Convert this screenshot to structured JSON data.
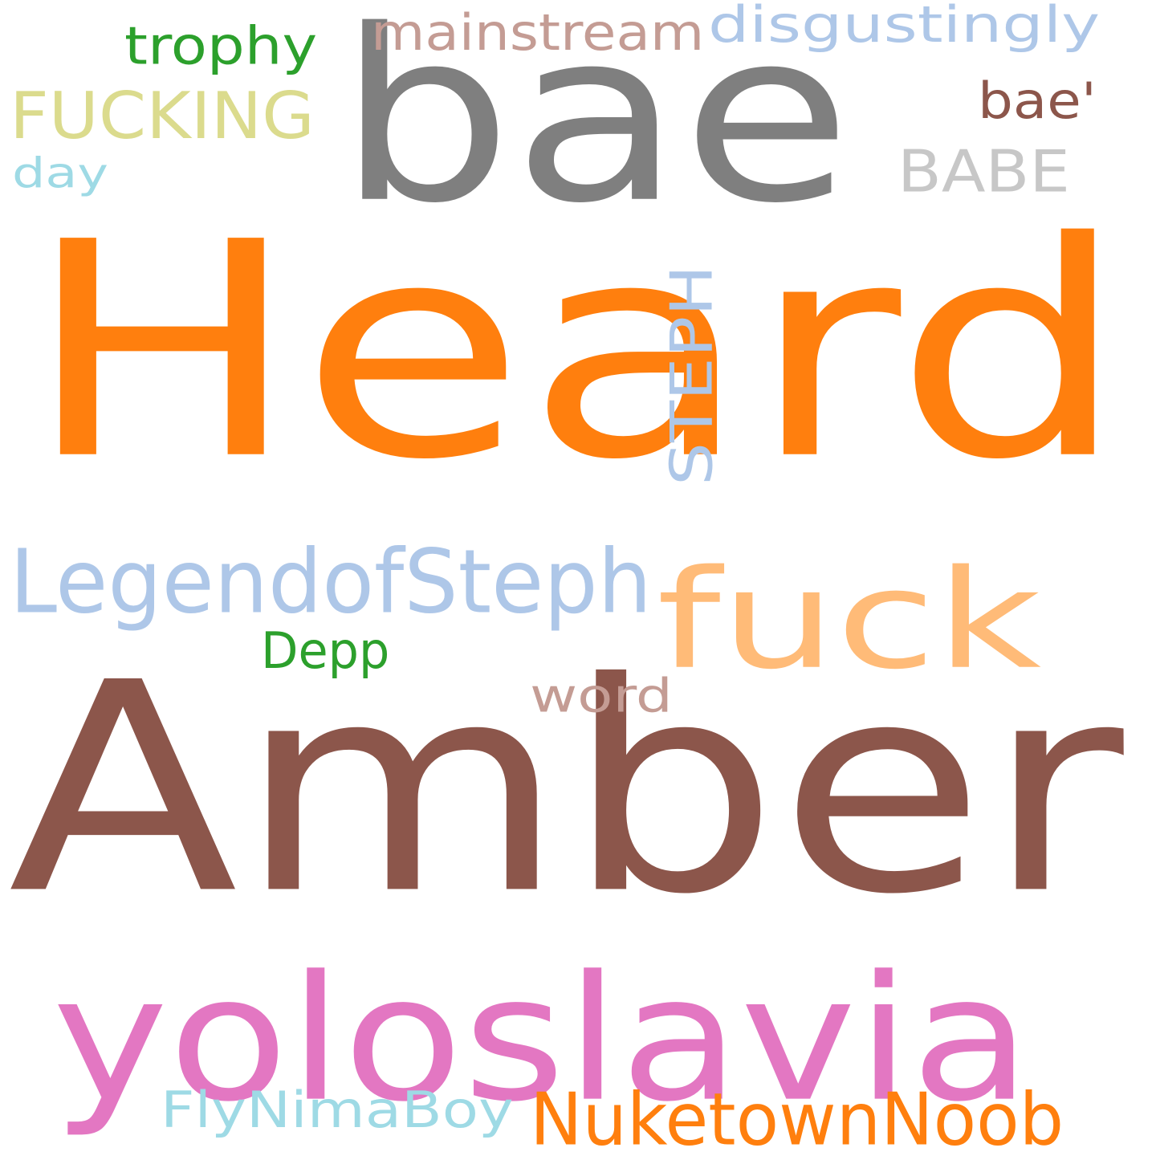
{
  "cloud": {
    "background": "#ffffff",
    "words": [
      {
        "text": "Heard",
        "color": "#ff7f0e"
      },
      {
        "text": "Amber",
        "color": "#8c564b"
      },
      {
        "text": "bae",
        "color": "#7f7f7f"
      },
      {
        "text": "yoloslavia",
        "color": "#e377c2"
      },
      {
        "text": "fuck",
        "color": "#ffbb78"
      },
      {
        "text": "LegendofSteph",
        "color": "#aec7e8"
      },
      {
        "text": "NuketownNoob",
        "color": "#ff7f0e"
      },
      {
        "text": "FUCKING",
        "color": "#dbdb8d"
      },
      {
        "text": "STEPH",
        "color": "#aec7e8"
      },
      {
        "text": "disgustingly",
        "color": "#aec7e8"
      },
      {
        "text": "mainstream",
        "color": "#c49c94"
      },
      {
        "text": "BABE",
        "color": "#c7c7c7"
      },
      {
        "text": "FlyNimaBoy",
        "color": "#9edae5"
      },
      {
        "text": "trophy",
        "color": "#2ca02c"
      },
      {
        "text": "bae'",
        "color": "#8c564b"
      },
      {
        "text": "word",
        "color": "#c49c94"
      },
      {
        "text": "Depp",
        "color": "#2ca02c"
      },
      {
        "text": "day",
        "color": "#9edae5"
      }
    ]
  }
}
